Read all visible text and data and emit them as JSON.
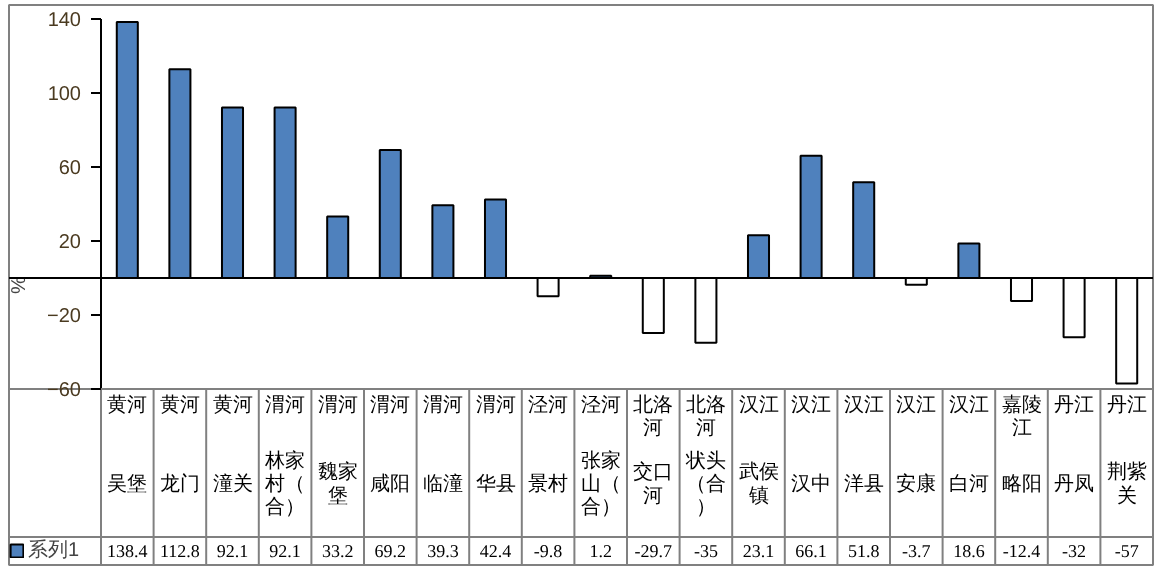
{
  "chart_data": {
    "type": "bar",
    "ylabel": "%",
    "categories": [
      "吴堡",
      "龙门",
      "潼关",
      "林家村（合）",
      "魏家堡",
      "咸阳",
      "临潼",
      "华县",
      "景村",
      "张家山（合）",
      "交口河",
      "状头（合）",
      "武侯镇",
      "汉中",
      "洋县",
      "安康",
      "白河",
      "略阳",
      "丹凤",
      "荆紫关"
    ],
    "annotations": [
      "黄河",
      "黄河",
      "黄河",
      "渭河",
      "渭河",
      "渭河",
      "渭河",
      "渭河",
      "泾河",
      "泾河",
      "北洛河",
      "北洛河",
      "汉江",
      "汉江",
      "汉江",
      "汉江",
      "汉江",
      "嘉陵江",
      "丹江",
      "丹江"
    ],
    "series": [
      {
        "name": "系列1",
        "colors": [
          "#4f81bd",
          "#4f81bd",
          "#4f81bd",
          "#4f81bd",
          "#4f81bd",
          "#4f81bd",
          "#4f81bd",
          "#4f81bd",
          "#ffffff",
          "#4f81bd",
          "#ffffff",
          "#ffffff",
          "#4f81bd",
          "#4f81bd",
          "#4f81bd",
          "#ffffff",
          "#4f81bd",
          "#ffffff",
          "#ffffff",
          "#ffffff"
        ],
        "values": [
          138.4,
          112.8,
          92.1,
          92.1,
          33.2,
          69.2,
          39.3,
          42.4,
          -9.8,
          1.2,
          -29.7,
          -35,
          23.1,
          66.1,
          51.8,
          -3.7,
          18.6,
          -12.4,
          -32,
          -57
        ]
      }
    ],
    "ylim": [
      -60,
      140
    ],
    "yticks": [
      -60,
      -20,
      20,
      60,
      100,
      140
    ],
    "data_labels": true,
    "legend": "bottom left",
    "grid": false
  }
}
